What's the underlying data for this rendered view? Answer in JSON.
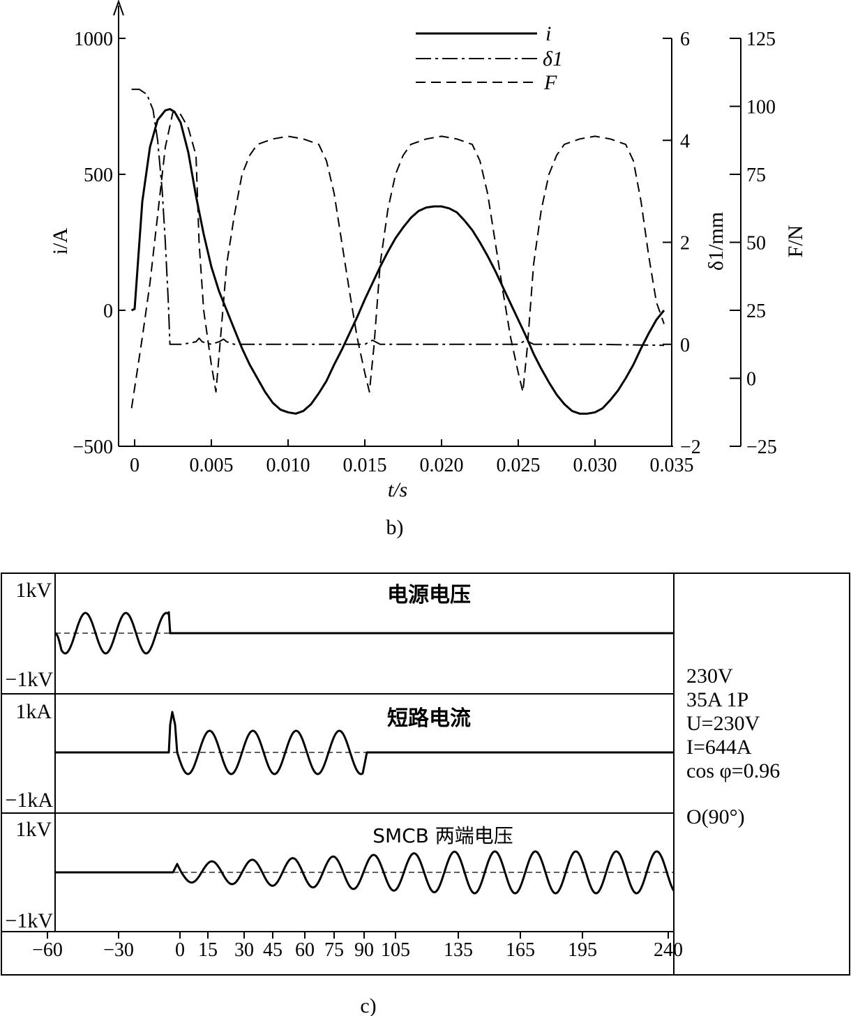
{
  "chart_data": [
    {
      "type": "line",
      "caption": "b)",
      "xlabel": "t/s",
      "xlim": [
        0,
        0.035
      ],
      "x_ticks": [
        0,
        0.005,
        0.01,
        0.015,
        0.02,
        0.025,
        0.03,
        0.035
      ],
      "x_tick_labels": [
        "0",
        "0.005",
        "0.010",
        "0.015",
        "0.020",
        "0.025",
        "0.030",
        "0.035"
      ],
      "y_axes": [
        {
          "label": "i/A",
          "side": "left",
          "lim": [
            -500,
            1000
          ],
          "ticks": [
            -500,
            0,
            500,
            1000
          ],
          "tick_labels": [
            "−500",
            "0",
            "500",
            "1000"
          ]
        },
        {
          "label": "δ1/mm",
          "side": "right",
          "lim": [
            -2,
            6
          ],
          "ticks": [
            -2,
            0,
            2,
            4,
            6
          ],
          "tick_labels": [
            "−2",
            "0",
            "2",
            "4",
            "6"
          ]
        },
        {
          "label": "F/N",
          "side": "right-outer",
          "lim": [
            -25,
            125
          ],
          "ticks": [
            -25,
            0,
            25,
            50,
            75,
            100,
            125
          ],
          "tick_labels": [
            "−25",
            "0",
            "25",
            "50",
            "75",
            "100",
            "125"
          ]
        }
      ],
      "legend": {
        "placement": "top-right",
        "entries": [
          "i",
          "δ1",
          "F"
        ]
      },
      "series": [
        {
          "name": "i",
          "axis": "i",
          "style": "solid",
          "x": [
            -0.0002,
            0.0,
            0.0005,
            0.001,
            0.0015,
            0.002,
            0.0023,
            0.0026,
            0.003,
            0.0035,
            0.004,
            0.0045,
            0.005,
            0.0055,
            0.006,
            0.0065,
            0.007,
            0.0075,
            0.008,
            0.0085,
            0.009,
            0.0095,
            0.01,
            0.0105,
            0.011,
            0.0115,
            0.012,
            0.0125,
            0.013,
            0.0135,
            0.014,
            0.0145,
            0.015,
            0.0155,
            0.016,
            0.0165,
            0.017,
            0.0175,
            0.018,
            0.0185,
            0.019,
            0.0195,
            0.02,
            0.0205,
            0.021,
            0.0215,
            0.022,
            0.0225,
            0.023,
            0.0235,
            0.024,
            0.0245,
            0.025,
            0.0255,
            0.026,
            0.0265,
            0.027,
            0.0275,
            0.028,
            0.0285,
            0.029,
            0.0295,
            0.03,
            0.0305,
            0.031,
            0.0315,
            0.032,
            0.0325,
            0.033,
            0.0335,
            0.034,
            0.0345
          ],
          "values": [
            0,
            5,
            400,
            600,
            700,
            735,
            740,
            730,
            690,
            580,
            420,
            280,
            160,
            70,
            0,
            -70,
            -140,
            -200,
            -250,
            -300,
            -340,
            -365,
            -375,
            -380,
            -370,
            -345,
            -305,
            -260,
            -200,
            -145,
            -85,
            -25,
            40,
            100,
            160,
            215,
            265,
            305,
            340,
            365,
            378,
            382,
            382,
            375,
            360,
            330,
            295,
            250,
            200,
            145,
            85,
            25,
            -35,
            -95,
            -160,
            -215,
            -265,
            -310,
            -345,
            -370,
            -380,
            -380,
            -375,
            -360,
            -330,
            -295,
            -250,
            -200,
            -140,
            -85,
            -35,
            0
          ]
        },
        {
          "name": "δ1",
          "axis": "δ1",
          "style": "dash-dot",
          "x": [
            -0.0002,
            0.0003,
            0.0008,
            0.0012,
            0.0015,
            0.0018,
            0.002,
            0.0022,
            0.0023,
            0.003,
            0.0035,
            0.004,
            0.0042,
            0.0044,
            0.005,
            0.0055,
            0.0058,
            0.006,
            0.0065,
            0.01,
            0.015,
            0.0155,
            0.016,
            0.0165,
            0.02,
            0.025,
            0.0255,
            0.026,
            0.0265,
            0.03,
            0.0345
          ],
          "values": [
            5.0,
            5.0,
            4.9,
            4.6,
            4.0,
            3.0,
            2.0,
            0.8,
            0.0,
            0.0,
            0.02,
            0.05,
            0.12,
            0.05,
            0.0,
            0.05,
            0.1,
            0.05,
            0.0,
            0.0,
            0.0,
            0.08,
            0.0,
            0.0,
            0.0,
            0.0,
            0.08,
            0.0,
            0.0,
            0.0,
            -0.02
          ]
        },
        {
          "name": "F",
          "axis": "F",
          "style": "dashed",
          "x": [
            -0.0002,
            0.0005,
            0.001,
            0.0015,
            0.002,
            0.0025,
            0.003,
            0.0035,
            0.004,
            0.0042,
            0.0045,
            0.005,
            0.0053,
            0.0056,
            0.006,
            0.0065,
            0.007,
            0.0075,
            0.008,
            0.009,
            0.01,
            0.011,
            0.012,
            0.0125,
            0.013,
            0.0135,
            0.014,
            0.0145,
            0.015,
            0.0153,
            0.0156,
            0.016,
            0.0165,
            0.017,
            0.0175,
            0.018,
            0.019,
            0.02,
            0.021,
            0.022,
            0.0225,
            0.023,
            0.0235,
            0.024,
            0.0245,
            0.025,
            0.0253,
            0.0256,
            0.026,
            0.0265,
            0.027,
            0.0275,
            0.028,
            0.029,
            0.03,
            0.031,
            0.032,
            0.0325,
            0.033,
            0.0335,
            0.034,
            0.0345
          ],
          "values": [
            -11,
            15,
            35,
            60,
            85,
            98,
            97,
            92,
            82,
            50,
            25,
            5,
            -5,
            15,
            42,
            60,
            75,
            82,
            86,
            88,
            89,
            88,
            86,
            80,
            68,
            50,
            32,
            15,
            2,
            -5,
            12,
            42,
            62,
            75,
            82,
            86,
            88,
            89,
            88,
            86,
            80,
            68,
            50,
            32,
            15,
            2,
            -5,
            12,
            42,
            62,
            75,
            82,
            86,
            88,
            89,
            88,
            86,
            80,
            65,
            45,
            28,
            20
          ]
        }
      ]
    },
    {
      "type": "line",
      "caption": "c)",
      "x_ticks": [
        -60,
        -30,
        0,
        15,
        30,
        45,
        60,
        75,
        90,
        105,
        135,
        165,
        195,
        240
      ],
      "x_tick_labels": [
        "−60",
        "−30",
        "0",
        "15",
        "30",
        "45",
        "60",
        "75",
        "90",
        "105",
        "135",
        "165",
        "195",
        "240"
      ],
      "panels": [
        {
          "title": "电源电压",
          "y_top_label": "1kV",
          "y_bottom_label": "−1kV",
          "description_series": "supply voltage: oscillates from −60 until ≈−5, then flat zero"
        },
        {
          "title": "短路电流",
          "y_top_label": "1kA",
          "y_bottom_label": "−1kA",
          "description_series": "short-circuit current: zero until ≈−5, peak then oscillation until ≈90, then zero"
        },
        {
          "title": "SMCB 两端电压",
          "y_top_label": "1kV",
          "y_bottom_label": "−1kV",
          "description_series": "voltage across SMCB: zero until ≈−5, then growing oscillation to 240"
        }
      ],
      "annotations": [
        "230V",
        "35A 1P",
        "U=230V",
        "I=644A",
        "cos φ=0.96",
        "O(90°)"
      ]
    }
  ]
}
